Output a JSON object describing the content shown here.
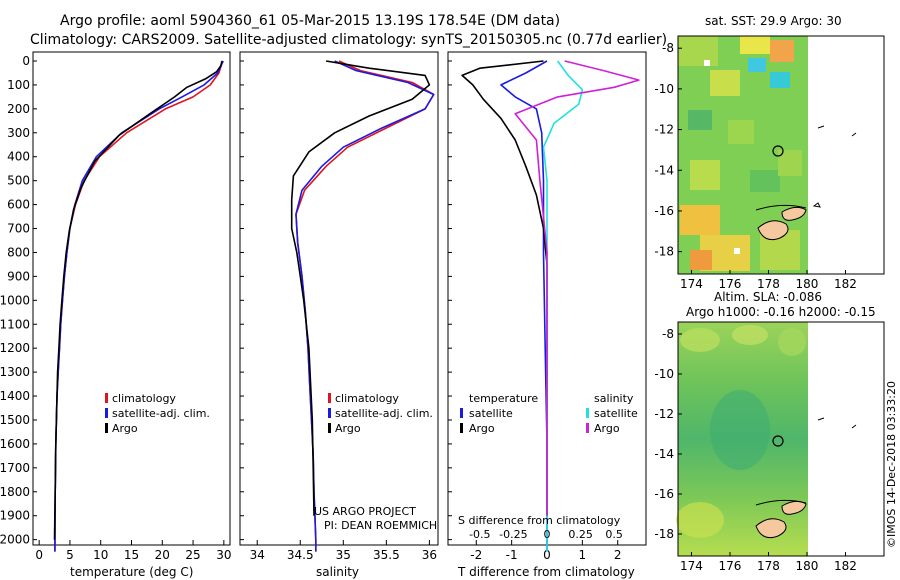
{
  "header": {
    "line1": "Argo profile: aoml 5904360_61 05-Mar-2015 13.19S 178.54E (DM data)",
    "line2": "Climatology: CARS2009. Satellite-adjusted climatology: synTS_20150305.nc (0.77d earlier)"
  },
  "credits": {
    "project": "US ARGO PROJECT",
    "pi": "PI: DEAN ROEMMICH",
    "watermark": "©IMOS 14-Dec-2018 03:33:20"
  },
  "colors": {
    "climatology": "#e0141e",
    "satellite": "#1a1ae6",
    "argo": "#000000",
    "sat_salinity": "#22e0e0",
    "argo_salinity": "#d020d8",
    "land": "#f6c8a0"
  },
  "depth_ticks": [
    "0",
    "100",
    "200",
    "300",
    "400",
    "500",
    "600",
    "700",
    "800",
    "900",
    "1000",
    "1100",
    "1200",
    "1300",
    "1400",
    "1500",
    "1600",
    "1700",
    "1800",
    "1900",
    "2000"
  ],
  "chart_data": [
    {
      "type": "line",
      "id": "temperature",
      "xlabel": "temperature (deg C)",
      "ylabel": "",
      "xlim": [
        -1,
        31
      ],
      "ylim": [
        0,
        2060
      ],
      "x_ticks": [
        "0",
        "5",
        "10",
        "15",
        "20",
        "25",
        "30"
      ],
      "legend": [
        "climatology",
        "satellite-adj. clim.",
        "Argo"
      ],
      "series": [
        {
          "name": "climatology",
          "color": "#e0141e",
          "x": [
            29.8,
            29.2,
            27.8,
            25.0,
            20.5,
            14.2,
            9.8,
            7.3,
            5.9,
            5.0,
            4.5,
            4.1,
            3.8,
            3.5,
            3.3,
            3.1,
            2.9,
            2.8,
            2.7,
            2.6,
            2.55
          ],
          "y": [
            0,
            50,
            100,
            150,
            200,
            300,
            400,
            500,
            600,
            700,
            800,
            900,
            1000,
            1100,
            1200,
            1300,
            1400,
            1500,
            1600,
            1800,
            2050
          ]
        },
        {
          "name": "satellite-adj. clim.",
          "color": "#1a1ae6",
          "x": [
            29.9,
            29.0,
            26.8,
            23.2,
            19.5,
            13.4,
            9.3,
            7.0,
            5.8,
            5.0,
            4.5,
            4.1,
            3.8,
            3.5,
            3.3,
            3.1,
            2.9,
            2.8,
            2.7,
            2.6,
            2.55
          ],
          "y": [
            0,
            50,
            100,
            150,
            200,
            300,
            400,
            500,
            600,
            700,
            800,
            900,
            1000,
            1100,
            1200,
            1300,
            1400,
            1500,
            1600,
            1800,
            2050
          ]
        },
        {
          "name": "Argo",
          "color": "#000000",
          "x": [
            29.7,
            29.5,
            28.8,
            27.0,
            24.0,
            22.0,
            18.0,
            13.0,
            9.0,
            6.8,
            5.6,
            4.9,
            4.4,
            4.0,
            3.7,
            3.4,
            3.2,
            3.0,
            2.9,
            2.7,
            2.6,
            2.5
          ],
          "y": [
            0,
            20,
            45,
            75,
            110,
            150,
            220,
            310,
            420,
            530,
            620,
            710,
            800,
            900,
            1000,
            1100,
            1200,
            1300,
            1400,
            1600,
            1800,
            2000
          ]
        }
      ]
    },
    {
      "type": "line",
      "id": "salinity",
      "xlabel": "salinity",
      "ylabel": "",
      "xlim": [
        33.8,
        36.1
      ],
      "ylim": [
        0,
        2060
      ],
      "x_ticks": [
        "34",
        "34.5",
        "35",
        "35.5",
        "36"
      ],
      "legend": [
        "climatology",
        "satellite-adj. clim.",
        "Argo"
      ],
      "series": [
        {
          "name": "climatology",
          "color": "#e0141e",
          "x": [
            34.95,
            35.2,
            35.8,
            36.05,
            35.95,
            35.5,
            35.05,
            34.8,
            34.55,
            34.45,
            34.47,
            34.52,
            34.56,
            34.59,
            34.61,
            34.63,
            34.65,
            34.66,
            34.67,
            34.68,
            34.68
          ],
          "y": [
            0,
            40,
            90,
            140,
            200,
            280,
            360,
            440,
            540,
            640,
            760,
            900,
            1050,
            1200,
            1350,
            1500,
            1650,
            1800,
            1900,
            2000,
            2050
          ]
        },
        {
          "name": "satellite-adj. clim.",
          "color": "#1a1ae6",
          "x": [
            34.9,
            35.15,
            35.75,
            36.05,
            35.95,
            35.45,
            35.0,
            34.75,
            34.52,
            34.45,
            34.47,
            34.52,
            34.56,
            34.59,
            34.61,
            34.63,
            34.65,
            34.66,
            34.67,
            34.68,
            34.68
          ],
          "y": [
            0,
            40,
            90,
            140,
            200,
            280,
            360,
            440,
            540,
            640,
            760,
            900,
            1050,
            1200,
            1350,
            1500,
            1650,
            1800,
            1900,
            2000,
            2050
          ]
        },
        {
          "name": "Argo",
          "color": "#000000",
          "x": [
            34.8,
            35.3,
            35.95,
            36.0,
            35.8,
            35.3,
            34.9,
            34.6,
            34.42,
            34.4,
            34.4,
            34.46,
            34.5,
            34.54,
            34.57,
            34.6,
            34.62,
            34.64,
            34.65,
            34.66
          ],
          "y": [
            0,
            30,
            60,
            100,
            160,
            230,
            300,
            380,
            480,
            580,
            700,
            800,
            900,
            1000,
            1100,
            1200,
            1350,
            1500,
            1700,
            1900
          ]
        }
      ]
    },
    {
      "type": "line",
      "id": "difference",
      "xlabel": "T difference from climatology",
      "ylabel": "",
      "secondary_xlabel": "S difference from climatology",
      "xlim": [
        -2.8,
        2.8
      ],
      "ylim": [
        0,
        2060
      ],
      "x_ticks": [
        "-2",
        "-1",
        "0",
        "1",
        "2"
      ],
      "secondary_ticks": [
        "-0.5",
        "-0.25",
        "0",
        "0.25",
        "0.5"
      ],
      "legend_headers": [
        "temperature",
        "salinity"
      ],
      "legend": [
        "satellite",
        "Argo",
        "satellite",
        "Argo"
      ],
      "series": [
        {
          "name": "temperature satellite",
          "color": "#1a1ae6",
          "x": [
            0.0,
            -0.6,
            -1.3,
            -0.9,
            -0.3,
            -0.15,
            -0.1,
            -0.1,
            -0.05,
            0.0,
            0.0
          ],
          "y": [
            0,
            50,
            100,
            150,
            200,
            300,
            500,
            800,
            1200,
            1600,
            2050
          ]
        },
        {
          "name": "temperature Argo",
          "color": "#000000",
          "x": [
            -0.1,
            -1.9,
            -2.4,
            -2.1,
            -1.8,
            -1.3,
            -0.9,
            -0.6,
            -0.3,
            -0.1,
            0.0,
            0.0,
            0.0
          ],
          "y": [
            0,
            30,
            60,
            100,
            160,
            240,
            330,
            440,
            560,
            700,
            850,
            1200,
            1900
          ]
        },
        {
          "name": "salinity satellite",
          "color": "#22e0e0",
          "x": [
            0.3,
            0.6,
            1.0,
            0.9,
            0.2,
            -0.1,
            0.0,
            0.0,
            0.0,
            0.0
          ],
          "y": [
            0,
            60,
            120,
            180,
            260,
            360,
            500,
            800,
            1400,
            2050
          ]
        },
        {
          "name": "salinity Argo",
          "color": "#d020d8",
          "x": [
            0.5,
            1.6,
            2.6,
            1.9,
            0.3,
            -0.9,
            -0.3,
            -0.2,
            0.0,
            0.0,
            0.0
          ],
          "y": [
            0,
            40,
            80,
            110,
            150,
            220,
            330,
            500,
            800,
            1400,
            1900
          ]
        }
      ]
    },
    {
      "type": "heatmap",
      "id": "sst_map",
      "title": "sat. SST: 29.9 Argo: 30",
      "xlim": [
        173.3,
        184
      ],
      "ylim": [
        -19.1,
        -7.4
      ],
      "x_ticks": [
        "174",
        "176",
        "178",
        "180",
        "182"
      ],
      "y_ticks": [
        "-8",
        "-10",
        "-12",
        "-14",
        "-16",
        "-18"
      ],
      "argo_position": {
        "lon": 178.54,
        "lat": -13.19
      }
    },
    {
      "type": "heatmap",
      "id": "sla_map",
      "title": "Altim. SLA: -0.086",
      "subtitle": "Argo h1000: -0.16 h2000: -0.15",
      "xlim": [
        173.3,
        184
      ],
      "ylim": [
        -19.1,
        -7.4
      ],
      "x_ticks": [
        "174",
        "176",
        "178",
        "180",
        "182"
      ],
      "y_ticks": [
        "-8",
        "-10",
        "-12",
        "-14",
        "-16",
        "-18"
      ],
      "argo_position": {
        "lon": 178.54,
        "lat": -13.19
      }
    }
  ]
}
